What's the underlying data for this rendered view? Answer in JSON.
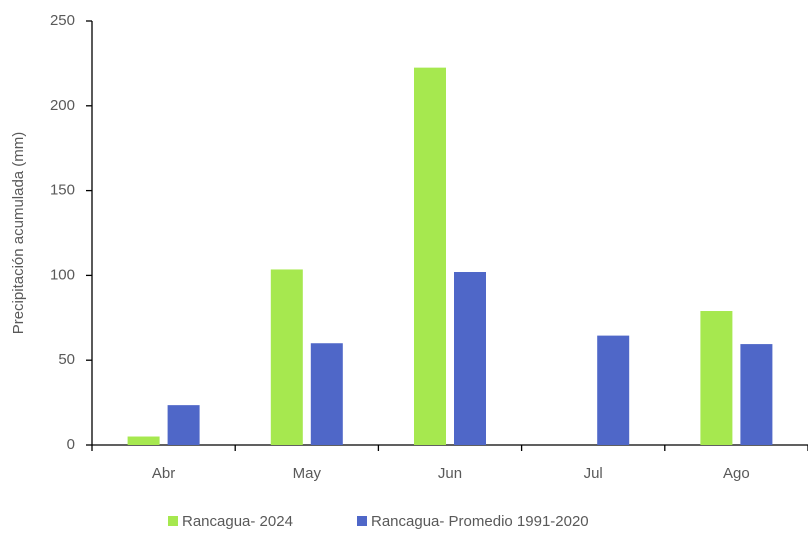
{
  "chart_data": {
    "type": "bar",
    "y_label": "Precipitación acumulada (mm)",
    "categories": [
      "Abr",
      "May",
      "Jun",
      "Jul",
      "Ago"
    ],
    "series": [
      {
        "name": "Rancagua- 2024",
        "color": "#a6e84f",
        "values": [
          5,
          103.5,
          222.5,
          0,
          79
        ]
      },
      {
        "name": "Rancagua- Promedio 1991-2020",
        "color": "#4f67c8",
        "values": [
          23.5,
          60,
          102,
          64.5,
          59.5
        ]
      }
    ],
    "ylim": [
      0,
      250
    ],
    "yticks": [
      0,
      50,
      100,
      150,
      200,
      250
    ],
    "grid": false
  }
}
